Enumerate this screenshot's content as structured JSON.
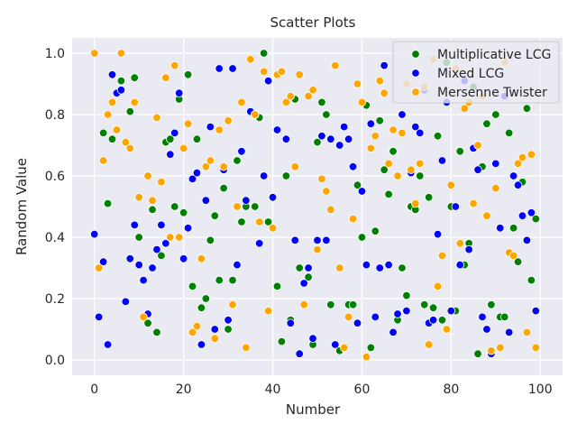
{
  "chart_data": {
    "type": "scatter",
    "title": "Scatter Plots",
    "xlabel": "Number",
    "ylabel": "Random Value",
    "xlim": [
      -5,
      105
    ],
    "ylim": [
      -0.05,
      1.05
    ],
    "xticks": [
      0,
      20,
      40,
      60,
      80,
      100
    ],
    "yticks": [
      0.0,
      0.2,
      0.4,
      0.6,
      0.8,
      1.0
    ],
    "xtick_labels": [
      "0",
      "20",
      "40",
      "60",
      "80",
      "100"
    ],
    "ytick_labels": [
      "0.0",
      "0.2",
      "0.4",
      "0.6",
      "0.8",
      "1.0"
    ],
    "grid": true,
    "legend_position": "top-right",
    "series": [
      {
        "name": "Multiplicative LCG",
        "color": "#008000",
        "x": [
          2,
          3,
          4,
          6,
          8,
          9,
          10,
          12,
          13,
          14,
          15,
          16,
          17,
          18,
          19,
          20,
          21,
          22,
          23,
          24,
          25,
          26,
          27,
          28,
          29,
          30,
          31,
          32,
          33,
          34,
          36,
          37,
          38,
          39,
          40,
          41,
          42,
          43,
          44,
          45,
          46,
          48,
          49,
          50,
          51,
          52,
          53,
          54,
          55,
          57,
          58,
          59,
          60,
          61,
          62,
          63,
          64,
          65,
          66,
          67,
          68,
          69,
          70,
          71,
          72,
          73,
          74,
          75,
          76,
          77,
          78,
          79,
          80,
          81,
          82,
          83,
          84,
          85,
          86,
          87,
          88,
          89,
          90,
          91,
          92,
          93,
          94,
          95,
          96,
          97,
          98,
          99
        ],
        "y": [
          0.74,
          0.51,
          0.72,
          0.91,
          0.81,
          0.92,
          0.4,
          0.12,
          0.49,
          0.09,
          0.34,
          0.71,
          0.72,
          0.5,
          0.85,
          0.48,
          0.93,
          0.24,
          0.72,
          0.17,
          0.2,
          0.39,
          0.47,
          0.26,
          0.56,
          0.1,
          0.26,
          0.65,
          0.45,
          0.5,
          0.5,
          0.79,
          1.0,
          0.45,
          0.43,
          0.24,
          0.06,
          0.6,
          0.13,
          0.85,
          0.3,
          0.27,
          0.05,
          0.71,
          0.84,
          0.8,
          0.18,
          0.96,
          0.03,
          0.18,
          0.18,
          0.57,
          0.4,
          0.83,
          0.04,
          0.42,
          0.78,
          0.62,
          0.54,
          0.68,
          0.13,
          0.3,
          0.21,
          0.5,
          0.49,
          0.6,
          0.18,
          0.53,
          0.17,
          0.73,
          0.13,
          0.97,
          0.5,
          0.16,
          0.68,
          0.31,
          0.38,
          0.89,
          0.02,
          0.63,
          0.77,
          0.18,
          0.8,
          0.14,
          0.14,
          0.74,
          0.43,
          0.32,
          0.58,
          0.82,
          0.26,
          0.46
        ]
      },
      {
        "name": "Mixed LCG",
        "color": "#0000ff",
        "x": [
          0,
          1,
          2,
          3,
          4,
          5,
          6,
          7,
          8,
          9,
          10,
          11,
          12,
          13,
          14,
          15,
          16,
          17,
          18,
          19,
          20,
          21,
          22,
          23,
          24,
          25,
          26,
          27,
          28,
          29,
          30,
          31,
          32,
          33,
          34,
          35,
          36,
          37,
          38,
          39,
          40,
          41,
          42,
          43,
          44,
          45,
          46,
          47,
          48,
          49,
          50,
          51,
          52,
          53,
          54,
          55,
          56,
          57,
          58,
          59,
          60,
          61,
          62,
          63,
          64,
          65,
          66,
          67,
          68,
          69,
          70,
          71,
          72,
          73,
          74,
          75,
          76,
          77,
          78,
          79,
          80,
          81,
          82,
          83,
          84,
          85,
          86,
          87,
          88,
          89,
          90,
          91,
          92,
          93,
          94,
          95,
          96,
          97,
          98,
          99
        ],
        "y": [
          0.41,
          0.14,
          0.32,
          0.05,
          0.93,
          0.87,
          0.88,
          0.19,
          0.33,
          0.44,
          0.31,
          0.26,
          0.15,
          0.3,
          0.36,
          0.44,
          0.38,
          0.67,
          0.74,
          0.87,
          0.33,
          0.43,
          0.59,
          0.61,
          0.05,
          0.52,
          0.76,
          0.1,
          0.95,
          0.62,
          0.13,
          0.95,
          0.31,
          0.68,
          0.52,
          0.81,
          0.8,
          0.38,
          0.6,
          0.91,
          0.53,
          0.75,
          0.94,
          0.72,
          0.12,
          0.39,
          0.02,
          0.25,
          0.3,
          0.07,
          0.39,
          0.73,
          0.39,
          0.72,
          0.05,
          0.7,
          0.76,
          0.72,
          0.63,
          0.12,
          0.55,
          0.31,
          0.77,
          0.14,
          0.3,
          0.96,
          0.31,
          0.09,
          0.15,
          0.8,
          0.16,
          0.61,
          0.76,
          0.74,
          0.88,
          0.12,
          0.13,
          0.41,
          0.65,
          0.84,
          0.16,
          0.5,
          0.31,
          0.91,
          0.36,
          0.69,
          0.62,
          0.14,
          0.1,
          0.02,
          0.64,
          0.43,
          0.86,
          0.09,
          0.6,
          0.57,
          0.47,
          0.39,
          0.48,
          0.16
        ]
      },
      {
        "name": "Mersenne Twister",
        "color": "#ffa500",
        "x": [
          0,
          1,
          2,
          3,
          4,
          5,
          6,
          7,
          8,
          9,
          10,
          11,
          12,
          13,
          14,
          15,
          16,
          17,
          18,
          19,
          20,
          21,
          22,
          23,
          24,
          25,
          26,
          27,
          28,
          29,
          30,
          31,
          32,
          33,
          34,
          35,
          36,
          37,
          38,
          39,
          40,
          41,
          42,
          43,
          44,
          45,
          46,
          47,
          48,
          49,
          50,
          51,
          52,
          53,
          54,
          55,
          56,
          57,
          58,
          59,
          60,
          61,
          62,
          63,
          64,
          65,
          66,
          67,
          68,
          69,
          70,
          71,
          72,
          73,
          74,
          75,
          76,
          77,
          78,
          79,
          80,
          81,
          82,
          83,
          84,
          85,
          86,
          87,
          88,
          89,
          90,
          91,
          92,
          93,
          94,
          95,
          96,
          97,
          98,
          99
        ],
        "y": [
          1.0,
          0.3,
          0.65,
          0.8,
          0.84,
          0.75,
          1.0,
          0.71,
          0.69,
          0.84,
          0.53,
          0.14,
          0.6,
          0.52,
          0.79,
          0.58,
          0.92,
          0.4,
          0.96,
          0.4,
          0.69,
          0.77,
          0.09,
          0.11,
          0.33,
          0.63,
          0.65,
          0.07,
          0.75,
          0.63,
          0.78,
          0.18,
          0.5,
          0.84,
          0.04,
          0.98,
          0.8,
          0.45,
          0.94,
          0.16,
          0.43,
          0.93,
          0.94,
          0.84,
          0.86,
          0.63,
          0.93,
          0.18,
          0.86,
          0.88,
          0.36,
          0.59,
          0.55,
          0.49,
          0.96,
          0.3,
          0.04,
          0.14,
          0.46,
          0.9,
          0.84,
          0.01,
          0.69,
          0.73,
          0.91,
          0.87,
          0.64,
          0.75,
          0.6,
          0.74,
          0.9,
          0.62,
          0.51,
          0.64,
          0.89,
          0.05,
          0.98,
          0.24,
          0.34,
          0.1,
          0.57,
          0.95,
          0.38,
          0.82,
          0.84,
          0.51,
          0.7,
          0.86,
          0.47,
          0.03,
          0.56,
          0.04,
          0.97,
          0.35,
          0.34,
          0.64,
          0.66,
          0.09,
          0.67,
          0.04
        ]
      }
    ]
  }
}
